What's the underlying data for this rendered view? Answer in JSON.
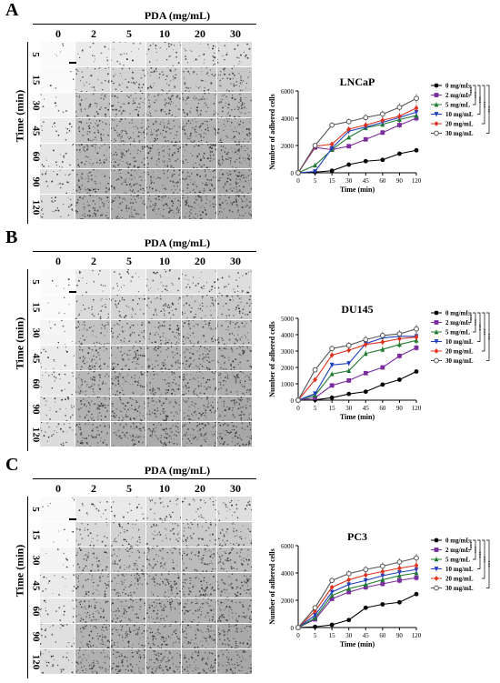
{
  "panels": [
    {
      "letter": "A",
      "pda_title": "PDA (mg/mL)",
      "time_label": "Time (min)",
      "columns": [
        "0",
        "2",
        "5",
        "10",
        "20",
        "30"
      ],
      "rows": [
        "5",
        "15",
        "30",
        "45",
        "60",
        "90",
        "120"
      ],
      "chart_title": "LNCaP"
    },
    {
      "letter": "B",
      "pda_title": "PDA (mg/mL)",
      "time_label": "Time (min)",
      "columns": [
        "0",
        "2",
        "5",
        "10",
        "20",
        "30"
      ],
      "rows": [
        "5",
        "15",
        "30",
        "45",
        "60",
        "90",
        "120"
      ],
      "chart_title": "DU145"
    },
    {
      "letter": "C",
      "pda_title": "PDA (mg/mL)",
      "time_label": "Time (min)",
      "columns": [
        "0",
        "2",
        "5",
        "10",
        "20",
        "30"
      ],
      "rows": [
        "5",
        "15",
        "30",
        "45",
        "60",
        "90",
        "120"
      ],
      "chart_title": "PC3"
    }
  ],
  "chart_data": [
    {
      "type": "line",
      "title": "LNCaP",
      "xlabel": "Time (min)",
      "ylabel": "Number of adhered cells",
      "categories": [
        "0",
        "5",
        "15",
        "30",
        "45",
        "60",
        "90",
        "120"
      ],
      "ylim": [
        0,
        6000
      ],
      "yticks": [
        0,
        2000,
        4000,
        6000
      ],
      "significance": [
        "***",
        "***",
        "***",
        "***",
        "***"
      ],
      "legend_position": "right",
      "series": [
        {
          "name": "0 mg/mL",
          "color": "#000000",
          "marker": "circle",
          "values": [
            0,
            50,
            150,
            600,
            850,
            950,
            1400,
            1650
          ]
        },
        {
          "name": "2 mg/mL",
          "color": "#7B2D9E",
          "marker": "square",
          "values": [
            0,
            1850,
            1700,
            1950,
            2450,
            2950,
            3500,
            4000
          ]
        },
        {
          "name": "5 mg/mL",
          "color": "#1E7A2E",
          "marker": "triangle",
          "values": [
            0,
            550,
            1700,
            2600,
            3300,
            3550,
            3900,
            4200
          ]
        },
        {
          "name": "10 mg/mL",
          "color": "#1F3FBF",
          "marker": "triangle-down",
          "values": [
            0,
            100,
            1800,
            3050,
            3350,
            3700,
            4050,
            4450
          ]
        },
        {
          "name": "20 mg/mL",
          "color": "#E0301E",
          "marker": "diamond",
          "values": [
            0,
            1950,
            2100,
            3200,
            3500,
            3850,
            4150,
            4750
          ]
        },
        {
          "name": "30 mg/mL",
          "color": "#555555",
          "marker": "circle-open",
          "values": [
            0,
            2000,
            3500,
            3750,
            4050,
            4300,
            4800,
            5450
          ]
        }
      ]
    },
    {
      "type": "line",
      "title": "DU145",
      "xlabel": "Time (min)",
      "ylabel": "Number of adhered cells",
      "categories": [
        "0",
        "5",
        "15",
        "30",
        "45",
        "60",
        "90",
        "120"
      ],
      "ylim": [
        0,
        5000
      ],
      "yticks": [
        0,
        1000,
        2000,
        3000,
        4000,
        5000
      ],
      "significance": [
        "***",
        "***",
        "***",
        "***",
        "***"
      ],
      "legend_position": "right",
      "series": [
        {
          "name": "0 mg/mL",
          "color": "#000000",
          "marker": "circle",
          "values": [
            0,
            20,
            150,
            380,
            520,
            950,
            1250,
            1750
          ]
        },
        {
          "name": "2 mg/mL",
          "color": "#7B2D9E",
          "marker": "square",
          "values": [
            0,
            150,
            900,
            1200,
            1650,
            2000,
            2700,
            3200
          ]
        },
        {
          "name": "5 mg/mL",
          "color": "#1E7A2E",
          "marker": "triangle",
          "values": [
            0,
            300,
            1600,
            1800,
            2850,
            3100,
            3400,
            3650
          ]
        },
        {
          "name": "10 mg/mL",
          "color": "#1F3FBF",
          "marker": "triangle-down",
          "values": [
            0,
            400,
            2150,
            2250,
            3450,
            3800,
            3900,
            3900
          ]
        },
        {
          "name": "20 mg/mL",
          "color": "#E0301E",
          "marker": "diamond",
          "values": [
            0,
            1250,
            2750,
            3050,
            3400,
            3550,
            3750,
            3850
          ]
        },
        {
          "name": "30 mg/mL",
          "color": "#555555",
          "marker": "circle-open",
          "values": [
            0,
            1850,
            3150,
            3350,
            3700,
            3950,
            4050,
            4350
          ]
        }
      ]
    },
    {
      "type": "line",
      "title": "PC3",
      "xlabel": "Time (min)",
      "ylabel": "Number of adhered cells",
      "categories": [
        "0",
        "5",
        "15",
        "30",
        "45",
        "60",
        "90",
        "120"
      ],
      "ylim": [
        0,
        6000
      ],
      "yticks": [
        0,
        2000,
        4000,
        6000
      ],
      "significance": [
        "***",
        "***",
        "***",
        "***",
        "***"
      ],
      "legend_position": "right",
      "series": [
        {
          "name": "0 mg/mL",
          "color": "#000000",
          "marker": "circle",
          "values": [
            0,
            50,
            200,
            550,
            1450,
            1700,
            1850,
            2450
          ]
        },
        {
          "name": "2 mg/mL",
          "color": "#7B2D9E",
          "marker": "square",
          "values": [
            0,
            600,
            2100,
            2600,
            2950,
            3200,
            3450,
            3650
          ]
        },
        {
          "name": "5 mg/mL",
          "color": "#1E7A2E",
          "marker": "triangle",
          "values": [
            0,
            700,
            2350,
            2850,
            3150,
            3500,
            3800,
            4000
          ]
        },
        {
          "name": "10 mg/mL",
          "color": "#1F3FBF",
          "marker": "triangle-down",
          "values": [
            0,
            900,
            2600,
            3150,
            3450,
            3800,
            4050,
            4250
          ]
        },
        {
          "name": "20 mg/mL",
          "color": "#E0301E",
          "marker": "diamond",
          "values": [
            0,
            1200,
            2950,
            3500,
            3850,
            4100,
            4350,
            4550
          ]
        },
        {
          "name": "30 mg/mL",
          "color": "#555555",
          "marker": "circle-open",
          "values": [
            0,
            1450,
            3450,
            3950,
            4250,
            4500,
            4800,
            5100
          ]
        }
      ]
    }
  ]
}
